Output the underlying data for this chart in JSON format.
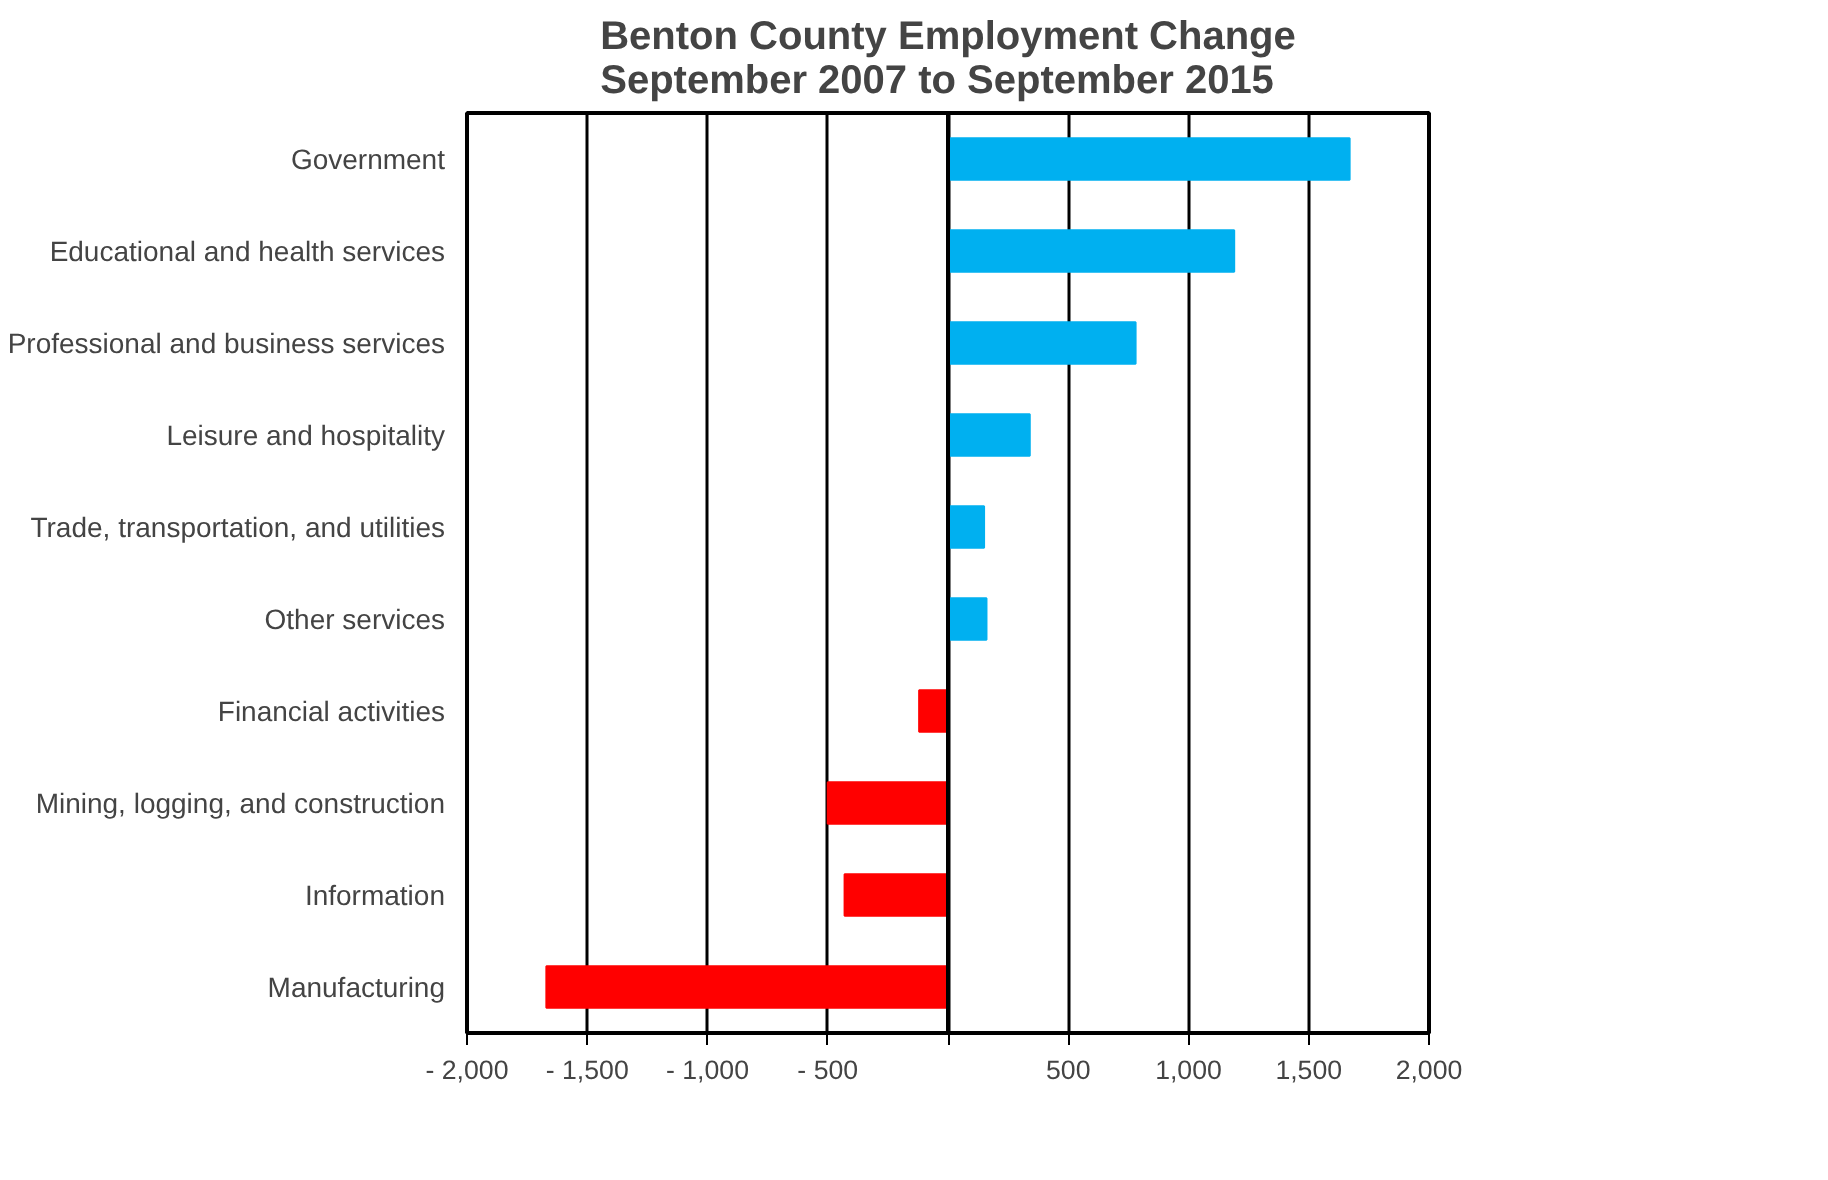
{
  "chart_data": {
    "type": "bar",
    "orientation": "horizontal",
    "title": "Benton County Employment Change\nSeptember 2007 to September 2015",
    "categories": [
      "Government",
      "Educational and health services",
      "Professional and business services",
      "Leisure and hospitality",
      "Trade, transportation, and utilities",
      "Other services",
      "Financial activities",
      "Mining, logging, and construction",
      "Information",
      "Manufacturing"
    ],
    "values": [
      1670,
      1190,
      780,
      340,
      150,
      160,
      -120,
      -500,
      -430,
      -1670
    ],
    "colors": [
      "#00b0f0",
      "#00b0f0",
      "#00b0f0",
      "#00b0f0",
      "#00b0f0",
      "#00b0f0",
      "#ff0000",
      "#ff0000",
      "#ff0000",
      "#ff0000"
    ],
    "xlim": [
      -2000,
      2000
    ],
    "xticks": [
      {
        "value": -2000,
        "label": "- 2,000"
      },
      {
        "value": -1500,
        "label": "- 1,500"
      },
      {
        "value": -1000,
        "label": "- 1,000"
      },
      {
        "value": -500,
        "label": "- 500"
      },
      {
        "value": 0,
        "label": null
      },
      {
        "value": 500,
        "label": "500"
      },
      {
        "value": 1000,
        "label": "1,000"
      },
      {
        "value": 1500,
        "label": "1,500"
      },
      {
        "value": 2000,
        "label": "2,000"
      }
    ],
    "grid": "x"
  }
}
